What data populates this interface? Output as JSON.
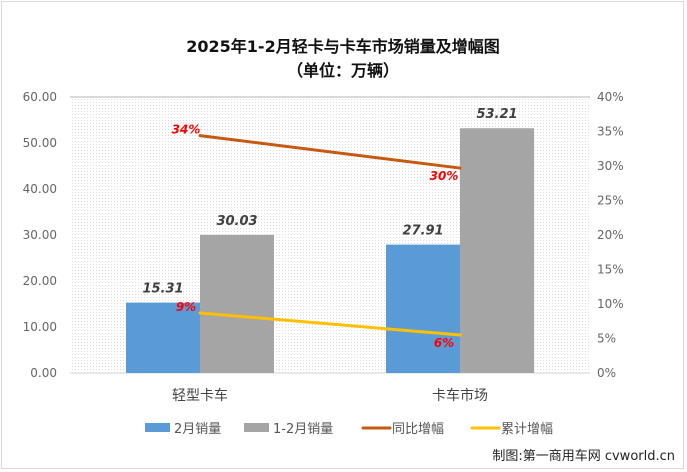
{
  "chart_data": {
    "type": "bar+line",
    "title": "2025年1-2月轻卡与卡车市场销量及增幅图",
    "subtitle": "（单位：万辆）",
    "categories": [
      "轻型卡车",
      "卡车市场"
    ],
    "y_left": {
      "range": [
        0,
        60
      ],
      "ticks": [
        "0.00",
        "10.00",
        "20.00",
        "30.00",
        "40.00",
        "50.00",
        "60.00"
      ]
    },
    "y_right": {
      "range": [
        0,
        40
      ],
      "ticks": [
        "0%",
        "5%",
        "10%",
        "15%",
        "20%",
        "25%",
        "30%",
        "35%",
        "40%"
      ]
    },
    "grid": false,
    "legend_placement": "bottom",
    "bar_series": [
      {
        "name": "2月销量",
        "values": [
          15.31,
          27.91
        ],
        "labels": [
          "15.31",
          "27.91"
        ],
        "color": "#5b9bd5"
      },
      {
        "name": "1-2月销量",
        "values": [
          30.03,
          53.21
        ],
        "labels": [
          "30.03",
          "53.21"
        ],
        "color": "#a5a5a5"
      }
    ],
    "line_series": [
      {
        "name": "同比增幅",
        "values": [
          34.4,
          29.7
        ],
        "labels": [
          "34%",
          "30%"
        ],
        "color": "#c55a11"
      },
      {
        "name": "累计增幅",
        "values": [
          8.7,
          5.5
        ],
        "labels": [
          "9%",
          "6%"
        ],
        "color": "#ffc000"
      }
    ]
  },
  "credit": "制图:第一商用车网 cvworld.cn"
}
